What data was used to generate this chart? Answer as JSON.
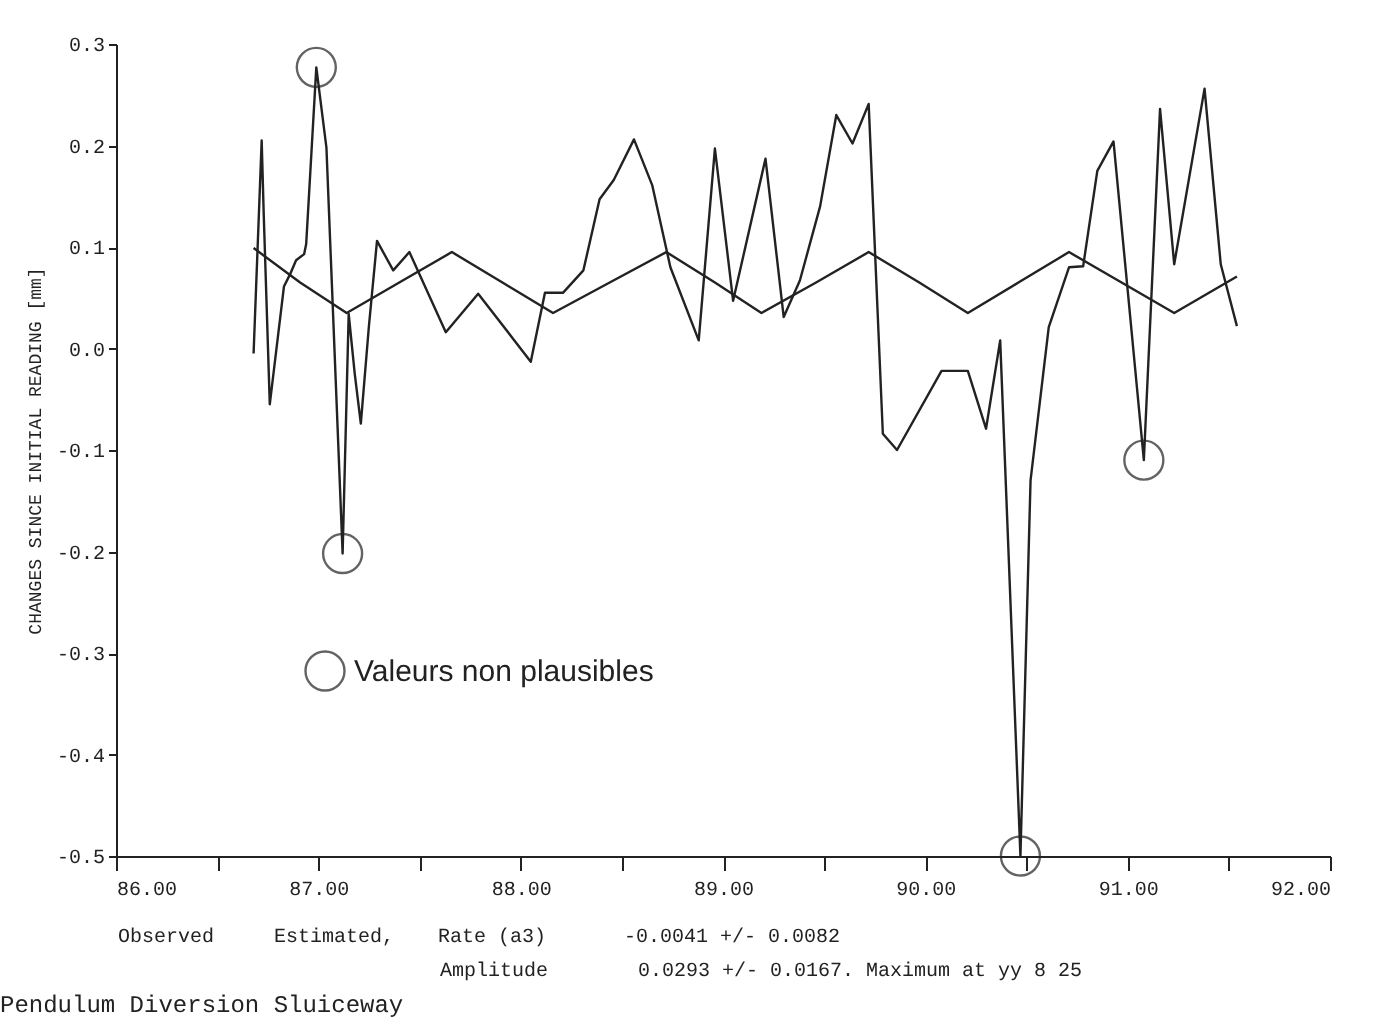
{
  "chart_data": {
    "type": "line",
    "xlabel": null,
    "ylabel": "CHANGES SINCE INITIAL READING  [mm]",
    "title": "Pendulum Diversion Sluiceway",
    "xlim": [
      86,
      92
    ],
    "ylim": [
      -0.5,
      0.3
    ],
    "xticks": [
      {
        "value": 86,
        "label": "86.00"
      },
      {
        "value": 86.5,
        "label": null
      },
      {
        "value": 87,
        "label": "87.00"
      },
      {
        "value": 87.5,
        "label": null
      },
      {
        "value": 88,
        "label": "88.00"
      },
      {
        "value": 88.5,
        "label": null
      },
      {
        "value": 89,
        "label": "89.00"
      },
      {
        "value": 89.5,
        "label": null
      },
      {
        "value": 90,
        "label": "90.00"
      },
      {
        "value": 90.5,
        "label": null
      },
      {
        "value": 91,
        "label": "91.00"
      },
      {
        "value": 91.5,
        "label": null
      },
      {
        "value": 92,
        "label": "92.00"
      }
    ],
    "yticks": [
      {
        "value": 0.3,
        "label": "0.3"
      },
      {
        "value": 0.2,
        "label": "0.2"
      },
      {
        "value": 0.1,
        "label": "0.1"
      },
      {
        "value": 0,
        "label": "0.0"
      },
      {
        "value": -0.1,
        "label": "-0.1"
      },
      {
        "value": -0.2,
        "label": "-0.2"
      },
      {
        "value": -0.3,
        "label": "-0.3"
      },
      {
        "value": -0.4,
        "label": "-0.4"
      },
      {
        "value": -0.5,
        "label": "-0.5"
      }
    ],
    "grid": false,
    "legend": "bottom left",
    "series": [
      {
        "color": "#222222",
        "line_style": "solid",
        "x": [
          86.68,
          86.72,
          86.73,
          86.76,
          86.83,
          86.86,
          86.89,
          86.93,
          86.94,
          86.99,
          87.04,
          87.12,
          87.15,
          87.18,
          87.21,
          87.25,
          87.29,
          87.37,
          87.45,
          87.63,
          87.79,
          88.05,
          88.12,
          88.21,
          88.31,
          88.39,
          88.46,
          88.56,
          88.65,
          88.74,
          88.88,
          88.96,
          89.05,
          89.21,
          89.3,
          89.38,
          89.48,
          89.56,
          89.64,
          89.72,
          89.79,
          89.86,
          90.08,
          90.21,
          90.3,
          90.37,
          90.47,
          90.52,
          90.61,
          90.71,
          90.78,
          90.85,
          90.93,
          91.08,
          91.16,
          91.23,
          91.38,
          91.46,
          91.54
        ],
        "values": [
          -0.005,
          0.205,
          0.133,
          -0.055,
          0.061,
          0.073,
          0.087,
          0.093,
          0.103,
          0.277,
          0.198,
          -0.202,
          0.034,
          -0.025,
          -0.074,
          0.022,
          0.106,
          0.077,
          0.095,
          0.016,
          0.054,
          -0.013,
          0.055,
          0.055,
          0.077,
          0.147,
          0.166,
          0.206,
          0.161,
          0.08,
          0.008,
          0.197,
          0.047,
          0.187,
          0.031,
          0.067,
          0.14,
          0.23,
          0.202,
          0.241,
          -0.084,
          -0.1,
          -0.022,
          -0.022,
          -0.079,
          0.008,
          -0.5,
          -0.13,
          0.021,
          0.08,
          0.081,
          0.175,
          0.204,
          -0.11,
          0.236,
          0.083,
          0.256,
          0.083,
          0.022
        ]
      },
      {
        "color": "#222222",
        "line_style": "solid",
        "x": [
          86.68,
          86.91,
          87.14,
          87.4,
          87.66,
          87.91,
          88.16,
          88.44,
          88.72,
          88.96,
          89.19,
          89.46,
          89.72,
          89.97,
          90.21,
          90.46,
          90.71,
          90.97,
          91.23,
          91.54
        ],
        "values": [
          0.099,
          0.065,
          0.035,
          0.065,
          0.095,
          0.065,
          0.035,
          0.065,
          0.095,
          0.065,
          0.035,
          0.065,
          0.095,
          0.065,
          0.035,
          0.065,
          0.095,
          0.065,
          0.035,
          0.071
        ]
      },
      {
        "type": "scatter",
        "name": "Valeurs non plausibles",
        "color": "#222222",
        "marker": "circle",
        "x": [
          86.99,
          87.12,
          90.47,
          91.08
        ],
        "values": [
          0.277,
          -0.202,
          -0.5,
          -0.11
        ]
      }
    ],
    "annotations": [
      "Observed",
      "Estimated,",
      "Rate (a3)",
      "-0.0041 +/-  0.0082",
      "Amplitude",
      "0.0293 +/-  0.0167. Maximum at yy  8 25"
    ]
  }
}
